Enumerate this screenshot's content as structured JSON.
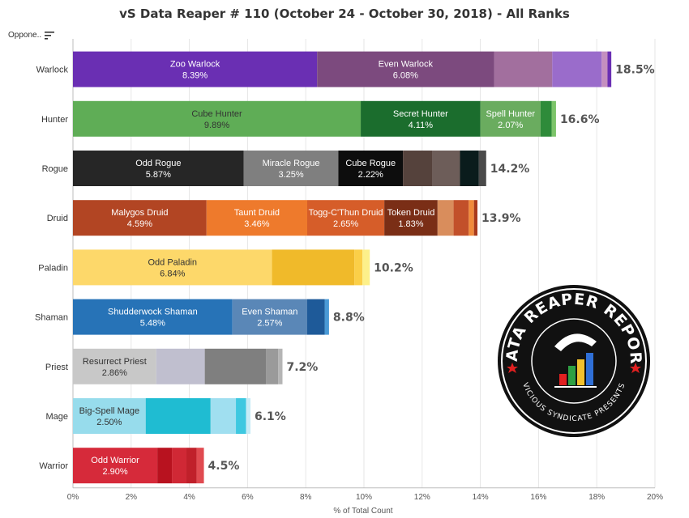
{
  "header": {
    "title": "vS Data Reaper # 110 (October 24 - October 30, 2018) - All Ranks",
    "filter_label": "Oppone..",
    "filter_icon": "sort-descending-icon"
  },
  "badge": {
    "top_text": "DATA REAPER REPORT",
    "bottom_text": "VICIOUS SYNDICATE PRESENTS"
  },
  "chart_data": {
    "type": "bar",
    "orientation": "horizontal",
    "stacked": true,
    "title": "vS Data Reaper # 110 (October 24 - October 30, 2018) - All Ranks",
    "xlabel": "% of Total Count",
    "ylabel": "Oppone..",
    "xlim": [
      0,
      20
    ],
    "xticks": [
      "0%",
      "2%",
      "4%",
      "6%",
      "8%",
      "10%",
      "12%",
      "14%",
      "16%",
      "18%",
      "20%"
    ],
    "grid": true,
    "categories": [
      {
        "name": "Warlock",
        "total": 18.5,
        "total_label": "18.5%",
        "segments": [
          {
            "name": "Zoo Warlock",
            "value": 8.39,
            "label": "8.39%",
            "color": "#6a2fb3",
            "text_color": "#ffffff"
          },
          {
            "name": "Even Warlock",
            "value": 6.08,
            "label": "6.08%",
            "color": "#7c4a7e",
            "text_color": "#ffffff"
          },
          {
            "name": "",
            "value": 2.0,
            "label": "",
            "color": "#a26f9e",
            "text_color": "#ffffff"
          },
          {
            "name": "",
            "value": 1.7,
            "label": "",
            "color": "#9a6ccb",
            "text_color": "#ffffff"
          },
          {
            "name": "",
            "value": 0.2,
            "label": "",
            "color": "#c48fbf",
            "text_color": "#ffffff"
          },
          {
            "name": "",
            "value": 0.13,
            "label": "",
            "color": "#6a2fb3",
            "text_color": "#ffffff"
          }
        ]
      },
      {
        "name": "Hunter",
        "total": 16.6,
        "total_label": "16.6%",
        "segments": [
          {
            "name": "Cube Hunter",
            "value": 9.89,
            "label": "9.89%",
            "color": "#5fad56",
            "text_color": "#333333"
          },
          {
            "name": "Secret Hunter",
            "value": 4.11,
            "label": "4.11%",
            "color": "#1b6d2d",
            "text_color": "#ffffff"
          },
          {
            "name": "Spell Hunter",
            "value": 2.07,
            "label": "2.07%",
            "color": "#6aac5f",
            "text_color": "#ffffff"
          },
          {
            "name": "",
            "value": 0.38,
            "label": "",
            "color": "#2e8b3a",
            "text_color": "#ffffff"
          },
          {
            "name": "",
            "value": 0.15,
            "label": "",
            "color": "#7cc46a",
            "text_color": "#ffffff"
          }
        ]
      },
      {
        "name": "Rogue",
        "total": 14.2,
        "total_label": "14.2%",
        "segments": [
          {
            "name": "Odd Rogue",
            "value": 5.87,
            "label": "5.87%",
            "color": "#262626",
            "text_color": "#ffffff"
          },
          {
            "name": "Miracle Rogue",
            "value": 3.25,
            "label": "3.25%",
            "color": "#7f7f7f",
            "text_color": "#ffffff"
          },
          {
            "name": "Cube Rogue",
            "value": 2.22,
            "label": "2.22%",
            "color": "#0d0d0d",
            "text_color": "#ffffff"
          },
          {
            "name": "",
            "value": 1.0,
            "label": "",
            "color": "#55423c",
            "text_color": "#ffffff"
          },
          {
            "name": "",
            "value": 0.96,
            "label": "",
            "color": "#6d5d59",
            "text_color": "#ffffff"
          },
          {
            "name": "",
            "value": 0.65,
            "label": "",
            "color": "#0a1c1c",
            "text_color": "#ffffff"
          },
          {
            "name": "",
            "value": 0.25,
            "label": "",
            "color": "#4a4a4a",
            "text_color": "#ffffff"
          }
        ]
      },
      {
        "name": "Druid",
        "total": 13.9,
        "total_label": "13.9%",
        "segments": [
          {
            "name": "Malygos Druid",
            "value": 4.59,
            "label": "4.59%",
            "color": "#b24523",
            "text_color": "#ffffff"
          },
          {
            "name": "Taunt Druid",
            "value": 3.46,
            "label": "3.46%",
            "color": "#ee7a2c",
            "text_color": "#ffffff"
          },
          {
            "name": "Togg-C'Thun Druid",
            "value": 2.65,
            "label": "2.65%",
            "color": "#d65d29",
            "text_color": "#ffffff"
          },
          {
            "name": "Token Druid",
            "value": 1.83,
            "label": "1.83%",
            "color": "#7a2e16",
            "text_color": "#ffffff"
          },
          {
            "name": "",
            "value": 0.55,
            "label": "",
            "color": "#d98d5c",
            "text_color": "#ffffff"
          },
          {
            "name": "",
            "value": 0.52,
            "label": "",
            "color": "#c2502a",
            "text_color": "#ffffff"
          },
          {
            "name": "",
            "value": 0.18,
            "label": "",
            "color": "#f08a3a",
            "text_color": "#ffffff"
          },
          {
            "name": "",
            "value": 0.12,
            "label": "",
            "color": "#a83a1c",
            "text_color": "#ffffff"
          }
        ]
      },
      {
        "name": "Paladin",
        "total": 10.2,
        "total_label": "10.2%",
        "segments": [
          {
            "name": "Odd Paladin",
            "value": 6.84,
            "label": "6.84%",
            "color": "#fdd86a",
            "text_color": "#333333"
          },
          {
            "name": "",
            "value": 2.83,
            "label": "",
            "color": "#f0ba2a",
            "text_color": "#333333"
          },
          {
            "name": "",
            "value": 0.28,
            "label": "",
            "color": "#fbcf48",
            "text_color": "#333333"
          },
          {
            "name": "",
            "value": 0.25,
            "label": "",
            "color": "#fdf08a",
            "text_color": "#333333"
          }
        ]
      },
      {
        "name": "Shaman",
        "total": 8.8,
        "total_label": "8.8%",
        "segments": [
          {
            "name": "Shudderwock Shaman",
            "value": 5.48,
            "label": "5.48%",
            "color": "#2773b7",
            "text_color": "#ffffff"
          },
          {
            "name": "Even Shaman",
            "value": 2.57,
            "label": "2.57%",
            "color": "#5a87b7",
            "text_color": "#ffffff"
          },
          {
            "name": "",
            "value": 0.6,
            "label": "",
            "color": "#1e5a99",
            "text_color": "#ffffff"
          },
          {
            "name": "",
            "value": 0.15,
            "label": "",
            "color": "#4a9ad6",
            "text_color": "#ffffff"
          }
        ]
      },
      {
        "name": "Priest",
        "total": 7.2,
        "total_label": "7.2%",
        "segments": [
          {
            "name": "Resurrect Priest",
            "value": 2.86,
            "label": "2.86%",
            "color": "#c8c8c8",
            "text_color": "#333333"
          },
          {
            "name": "",
            "value": 1.67,
            "label": "",
            "color": "#c0bfcf",
            "text_color": "#333333"
          },
          {
            "name": "",
            "value": 2.1,
            "label": "",
            "color": "#7f7f7f",
            "text_color": "#333333"
          },
          {
            "name": "",
            "value": 0.42,
            "label": "",
            "color": "#9a9a9a",
            "text_color": "#333333"
          },
          {
            "name": "",
            "value": 0.15,
            "label": "",
            "color": "#b5b5b5",
            "text_color": "#333333"
          }
        ]
      },
      {
        "name": "Mage",
        "total": 6.1,
        "total_label": "6.1%",
        "segments": [
          {
            "name": "Big-Spell Mage",
            "value": 2.5,
            "label": "2.50%",
            "color": "#97dcec",
            "text_color": "#333333"
          },
          {
            "name": "",
            "value": 2.23,
            "label": "",
            "color": "#1fbcd2",
            "text_color": "#333333"
          },
          {
            "name": "",
            "value": 0.87,
            "label": "",
            "color": "#a0dff0",
            "text_color": "#333333"
          },
          {
            "name": "",
            "value": 0.35,
            "label": "",
            "color": "#3ec8e0",
            "text_color": "#333333"
          },
          {
            "name": "",
            "value": 0.15,
            "label": "",
            "color": "#c6ecf6",
            "text_color": "#333333"
          }
        ]
      },
      {
        "name": "Warrior",
        "total": 4.5,
        "total_label": "4.5%",
        "segments": [
          {
            "name": "Odd Warrior",
            "value": 2.9,
            "label": "2.90%",
            "color": "#d62a3a",
            "text_color": "#ffffff"
          },
          {
            "name": "",
            "value": 0.5,
            "label": "",
            "color": "#b8121f",
            "text_color": "#ffffff"
          },
          {
            "name": "",
            "value": 0.5,
            "label": "",
            "color": "#d02835",
            "text_color": "#ffffff"
          },
          {
            "name": "",
            "value": 0.35,
            "label": "",
            "color": "#c0202a",
            "text_color": "#ffffff"
          },
          {
            "name": "",
            "value": 0.25,
            "label": "",
            "color": "#e04a50",
            "text_color": "#ffffff"
          }
        ]
      }
    ]
  }
}
